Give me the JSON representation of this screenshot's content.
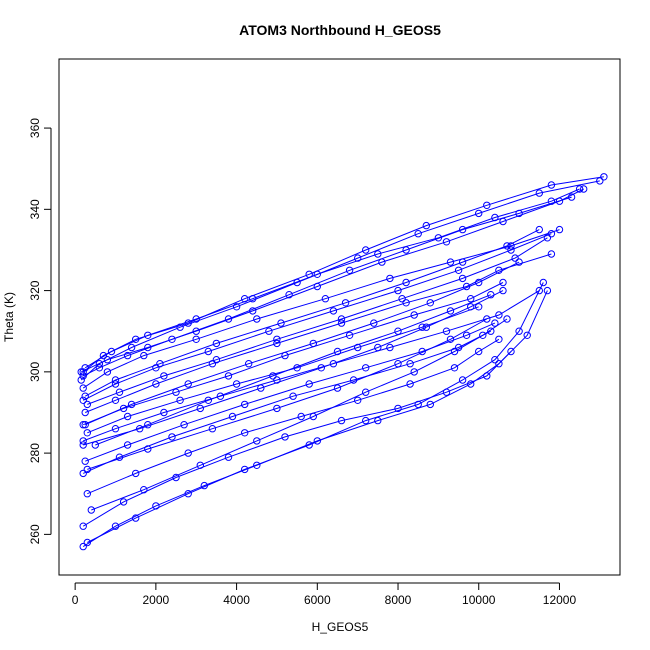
{
  "chart_data": {
    "type": "line",
    "title": "ATOM3 Northbound H_GEOS5",
    "xlabel": "H_GEOS5",
    "ylabel": "Theta (K)",
    "xlim": [
      -400,
      13500
    ],
    "ylim": [
      250,
      377
    ],
    "xticks": [
      0,
      2000,
      4000,
      6000,
      8000,
      10000,
      12000
    ],
    "yticks": [
      260,
      280,
      300,
      320,
      340,
      360
    ],
    "grid": false,
    "legend": "none",
    "colors": {
      "series": "#0000ff",
      "axes": "#000000"
    },
    "marker": "open-circle",
    "series": [
      {
        "x": [
          200,
          700,
          1500,
          2800,
          4200,
          5800,
          7200,
          8700,
          10200,
          11800,
          13100
        ],
        "y": [
          300,
          304,
          308,
          312,
          318,
          324,
          330,
          336,
          341,
          346,
          348
        ]
      },
      {
        "x": [
          150,
          600,
          1400,
          2600,
          4000,
          5500,
          7000,
          8500,
          10000,
          11500,
          13000
        ],
        "y": [
          298,
          302,
          306,
          311,
          316,
          322,
          328,
          334,
          339,
          344,
          347
        ]
      },
      {
        "x": [
          250,
          900,
          1800,
          3000,
          4400,
          6000,
          7500,
          9000,
          10400,
          11800,
          12500
        ],
        "y": [
          301,
          305,
          309,
          313,
          318,
          324,
          329,
          333,
          338,
          342,
          345
        ]
      },
      {
        "x": [
          200,
          800,
          1700,
          3000,
          4500,
          6200,
          7800,
          9300,
          10800,
          12000
        ],
        "y": [
          296,
          300,
          304,
          308,
          313,
          318,
          323,
          327,
          331,
          335
        ]
      },
      {
        "x": [
          200,
          1000,
          2000,
          3300,
          4800,
          6400,
          8000,
          9500,
          10800,
          11800
        ],
        "y": [
          293,
          297,
          301,
          305,
          310,
          315,
          320,
          325,
          330,
          334
        ]
      },
      {
        "x": [
          300,
          1100,
          2200,
          3500,
          5000,
          6600,
          8100,
          9600,
          10900,
          11700
        ],
        "y": [
          292,
          295,
          299,
          303,
          308,
          313,
          318,
          323,
          328,
          333
        ]
      },
      {
        "x": [
          250,
          1000,
          2000,
          3400,
          5000,
          6600,
          8200,
          9700,
          10500,
          11800
        ],
        "y": [
          290,
          293,
          297,
          302,
          307,
          312,
          317,
          321,
          325,
          329
        ]
      },
      {
        "x": [
          200,
          1200,
          2500,
          3800,
          5200,
          6800,
          8400,
          9800,
          10600
        ],
        "y": [
          287,
          291,
          295,
          299,
          304,
          309,
          314,
          318,
          322
        ]
      },
      {
        "x": [
          300,
          1300,
          2600,
          4000,
          5500,
          7000,
          8600,
          10000
        ],
        "y": [
          285,
          289,
          293,
          297,
          301,
          306,
          311,
          316
        ]
      },
      {
        "x": [
          200,
          1000,
          2200,
          3600,
          5000,
          6400,
          7800,
          9200,
          10500,
          11500
        ],
        "y": [
          283,
          286,
          290,
          294,
          298,
          302,
          306,
          310,
          314,
          320
        ]
      },
      {
        "x": [
          250,
          1300,
          2700,
          4200,
          5800,
          7200,
          8600,
          9700,
          10400
        ],
        "y": [
          278,
          282,
          287,
          292,
          297,
          301,
          305,
          309,
          312
        ]
      },
      {
        "x": [
          200,
          1100,
          2400,
          3900,
          5400,
          6900,
          8300,
          9500,
          10300
        ],
        "y": [
          275,
          279,
          284,
          289,
          294,
          298,
          302,
          306,
          310
        ]
      },
      {
        "x": [
          300,
          1500,
          2800,
          4200,
          5600,
          7000,
          8300,
          9400,
          10000,
          10500
        ],
        "y": [
          270,
          275,
          280,
          285,
          289,
          293,
          297,
          301,
          305,
          308
        ]
      },
      {
        "x": [
          200,
          1200,
          2500,
          3800,
          5200,
          6600,
          8000,
          9200,
          10200,
          10800
        ],
        "y": [
          262,
          268,
          274,
          279,
          284,
          288,
          291,
          295,
          299,
          305
        ]
      },
      {
        "x": [
          200,
          1000,
          2000,
          3200,
          4500,
          6000,
          7500,
          8800,
          9800,
          10500,
          11200,
          11700
        ],
        "y": [
          257,
          262,
          267,
          272,
          277,
          283,
          288,
          292,
          297,
          302,
          309,
          320
        ]
      },
      {
        "x": [
          300,
          1500,
          2800,
          4200,
          5800,
          7200,
          8500,
          9600,
          10400,
          11000,
          11600
        ],
        "y": [
          258,
          264,
          270,
          276,
          282,
          288,
          292,
          298,
          303,
          310,
          322
        ]
      },
      {
        "x": [
          150,
          800,
          1800,
          3000,
          4400,
          6000,
          7600,
          9200,
          10600,
          12000,
          12600
        ],
        "y": [
          300,
          303,
          306,
          310,
          315,
          321,
          327,
          332,
          337,
          342,
          345
        ]
      },
      {
        "x": [
          250,
          1400,
          2800,
          4300,
          5900,
          7400,
          8800,
          10000,
          11000
        ],
        "y": [
          287,
          292,
          297,
          302,
          307,
          312,
          317,
          322,
          327
        ]
      },
      {
        "x": [
          200,
          1600,
          3100,
          4600,
          6100,
          7500,
          8700,
          9800,
          10600
        ],
        "y": [
          282,
          286,
          291,
          296,
          301,
          306,
          311,
          316,
          320
        ]
      },
      {
        "x": [
          300,
          1800,
          3400,
          5000,
          6500,
          8000,
          9300,
          10200
        ],
        "y": [
          276,
          281,
          286,
          291,
          296,
          302,
          308,
          313
        ]
      },
      {
        "x": [
          200,
          600,
          1300,
          2400,
          3800,
          5300,
          6800,
          8200,
          9600,
          11000,
          12300
        ],
        "y": [
          299,
          301,
          304,
          308,
          313,
          319,
          325,
          330,
          335,
          339,
          343
        ]
      },
      {
        "x": [
          250,
          1000,
          2100,
          3500,
          5100,
          6700,
          8200,
          9600,
          10700,
          11500
        ],
        "y": [
          294,
          298,
          302,
          307,
          312,
          317,
          322,
          327,
          331,
          335
        ]
      },
      {
        "x": [
          500,
          1800,
          3300,
          4900,
          6500,
          8000,
          9300,
          10300
        ],
        "y": [
          282,
          287,
          293,
          299,
          305,
          310,
          315,
          319
        ]
      },
      {
        "x": [
          400,
          1700,
          3100,
          4500,
          5900,
          7200,
          8400,
          9400,
          10100,
          10700
        ],
        "y": [
          266,
          271,
          277,
          283,
          289,
          295,
          300,
          305,
          309,
          313
        ]
      }
    ]
  }
}
